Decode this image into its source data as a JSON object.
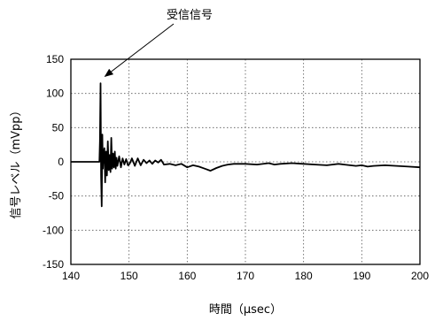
{
  "chart_data": {
    "type": "line",
    "title": "",
    "xlabel": "時間（μsec）",
    "ylabel": "信号レベル（mVpp）",
    "xlim": [
      140,
      200
    ],
    "ylim": [
      -150,
      150
    ],
    "xticks": [
      140,
      150,
      160,
      170,
      180,
      190,
      200
    ],
    "yticks": [
      150,
      100,
      50,
      0,
      -50,
      -100,
      -150
    ],
    "grid": true,
    "grid_style": "dotted",
    "annotations": [
      {
        "text": "受信信号",
        "x": 145.1,
        "y": 112
      }
    ],
    "series": [
      {
        "color": "#000000",
        "x": [
          140,
          144.9,
          145.0,
          145.1,
          145.2,
          145.3,
          145.4,
          145.5,
          145.6,
          145.75,
          145.9,
          146.05,
          146.2,
          146.35,
          146.5,
          146.65,
          146.8,
          146.95,
          147.1,
          147.25,
          147.4,
          147.55,
          147.7,
          147.85,
          148.0,
          148.3,
          148.6,
          148.9,
          149.2,
          149.5,
          149.8,
          150.1,
          150.5,
          151,
          151.5,
          152,
          152.5,
          153,
          153.5,
          154,
          154.5,
          155,
          155.5,
          156,
          157,
          158,
          159,
          160,
          161,
          162,
          163,
          164,
          165,
          166,
          167,
          168,
          170,
          172,
          174,
          175,
          176,
          178,
          180,
          182,
          184,
          186,
          187,
          188,
          189,
          190,
          191,
          192,
          194,
          196,
          198,
          200
        ],
        "y": [
          0,
          0,
          30,
          115,
          -20,
          -65,
          40,
          -10,
          10,
          20,
          -30,
          15,
          -20,
          30,
          -12,
          10,
          -15,
          35,
          -10,
          12,
          -8,
          15,
          -10,
          6,
          -6,
          8,
          -8,
          5,
          -4,
          4,
          -5,
          -3,
          5,
          -6,
          5,
          -5,
          3,
          -2,
          2,
          -3,
          2,
          -1,
          3,
          -4,
          -3,
          -5,
          -3,
          -8,
          -5,
          -7,
          -10,
          -13,
          -9,
          -6,
          -4,
          -3,
          -3,
          -4,
          -2,
          -4,
          -3,
          -2,
          -3,
          -4,
          -5,
          -3,
          -4,
          -5,
          -6,
          -5,
          -7,
          -6,
          -5,
          -6,
          -7,
          -8
        ]
      }
    ]
  }
}
